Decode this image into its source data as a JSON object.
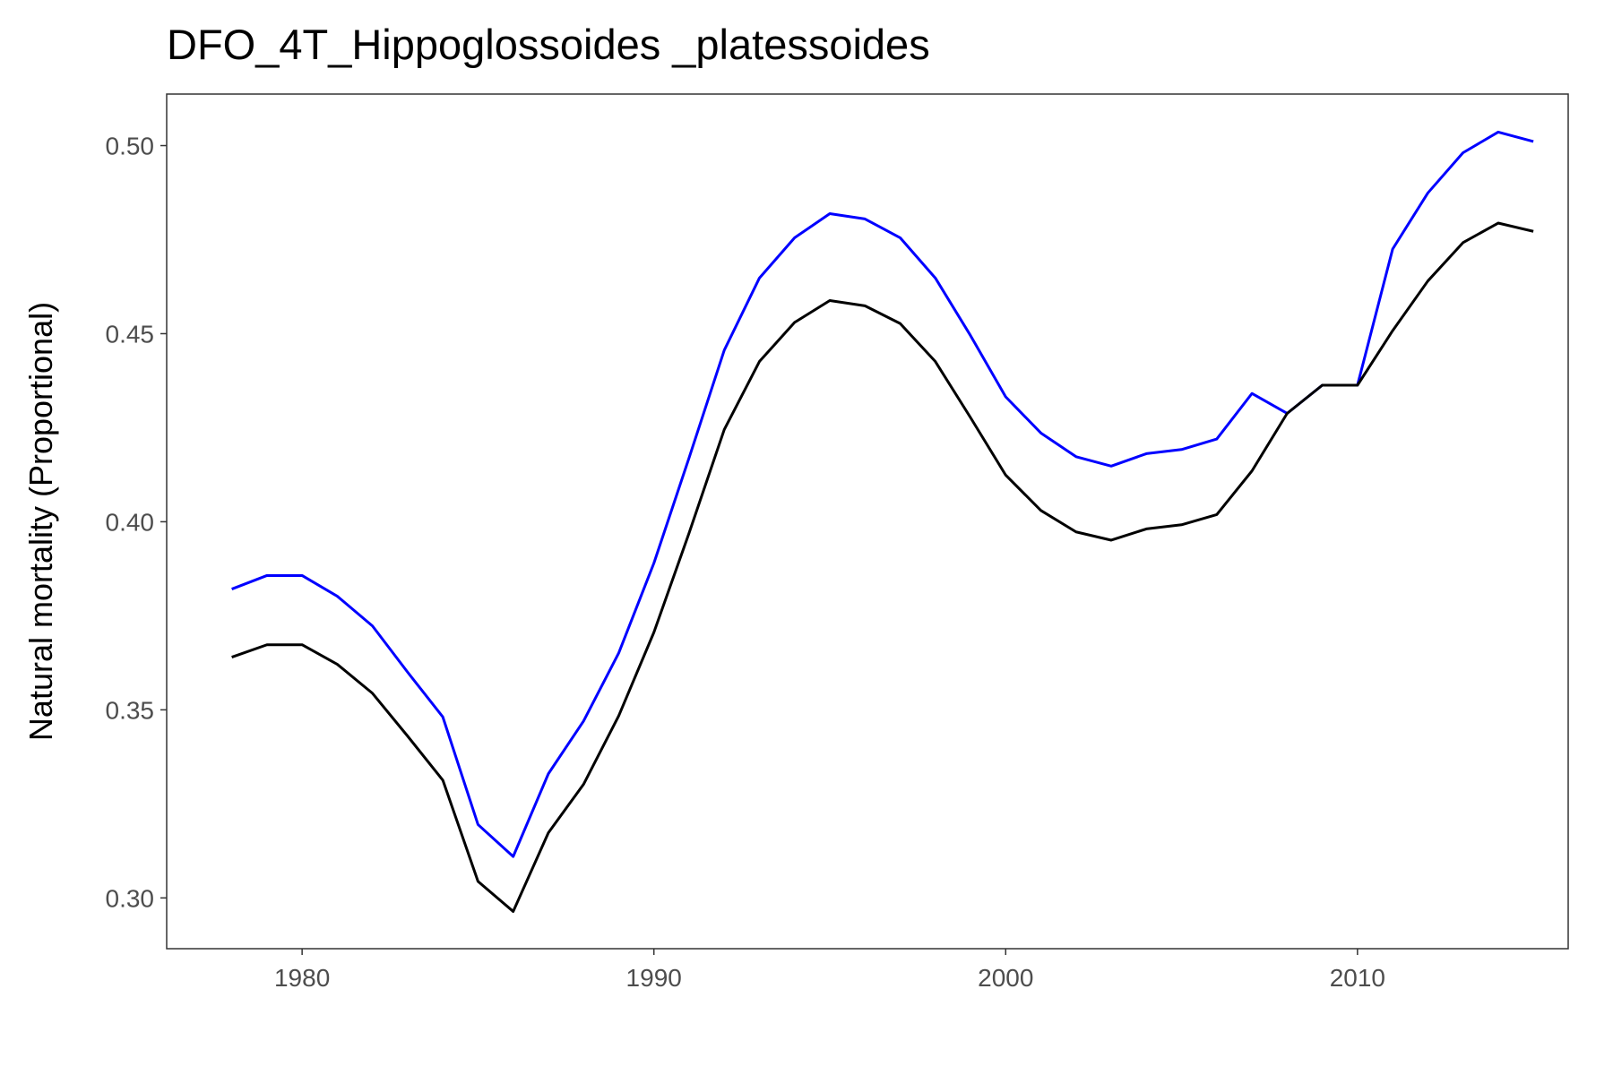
{
  "chart_data": {
    "type": "line",
    "title": "DFO_4T_Hippoglossoides _platessoides",
    "y_label": "Natural mortality (Proportional)",
    "x": [
      1978,
      1979,
      1980,
      1981,
      1982,
      1983,
      1984,
      1985,
      1986,
      1987,
      1988,
      1989,
      1990,
      1991,
      1992,
      1993,
      1994,
      1995,
      1996,
      1997,
      1998,
      1999,
      2000,
      2001,
      2002,
      2003,
      2004,
      2005,
      2006,
      2007,
      2008,
      2009,
      2010,
      2011,
      2012,
      2013,
      2014,
      2015
    ],
    "series": [
      {
        "color": "#0000ff",
        "values": [
          0.3821,
          0.3857,
          0.3857,
          0.3802,
          0.3723,
          0.36,
          0.3481,
          0.3195,
          0.311,
          0.333,
          0.347,
          0.3651,
          0.389,
          0.417,
          0.4456,
          0.4648,
          0.4755,
          0.4819,
          0.4805,
          0.4755,
          0.4648,
          0.4495,
          0.4332,
          0.4236,
          0.4173,
          0.4148,
          0.4181,
          0.4192,
          0.422,
          0.4341,
          0.4288,
          0.4363,
          0.4363,
          0.4725,
          0.4874,
          0.4981,
          0.5036,
          0.5011
        ]
      },
      {
        "color": "#000000",
        "values": [
          0.364,
          0.3673,
          0.3673,
          0.3621,
          0.3544,
          0.343,
          0.3313,
          0.3044,
          0.2964,
          0.3173,
          0.3302,
          0.3484,
          0.3706,
          0.397,
          0.4245,
          0.4426,
          0.453,
          0.4588,
          0.4574,
          0.4527,
          0.4426,
          0.4277,
          0.4124,
          0.403,
          0.3973,
          0.3951,
          0.3981,
          0.3992,
          0.4019,
          0.4135,
          0.4288,
          0.4363,
          0.4363,
          0.4508,
          0.464,
          0.4742,
          0.4794,
          0.4772
        ]
      }
    ],
    "xlim": [
      1976.15,
      2015.99
    ],
    "ylim": [
      0.2865,
      0.5137
    ],
    "xticks": [
      1980,
      1990,
      2000,
      2010
    ],
    "yticks": [
      {
        "value": 0.3,
        "label": "0.30"
      },
      0.35,
      {
        "value": 0.4,
        "label": "0.40"
      },
      0.45,
      {
        "value": 0.5,
        "label": "0.50"
      }
    ],
    "grid": false
  }
}
